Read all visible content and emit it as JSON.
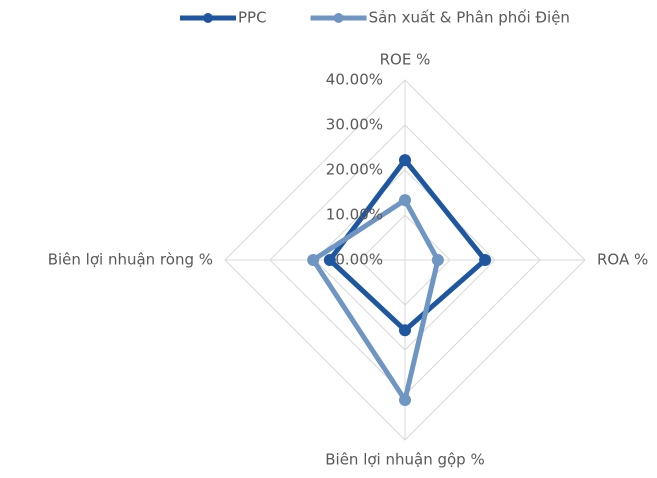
{
  "chart_data": {
    "type": "radar",
    "categories": [
      "ROE %",
      "ROA %",
      "Biên lợi nhuận gộp %",
      "Biên lợi nhuận ròng %"
    ],
    "series": [
      {
        "name": "PPC",
        "color": "#1f56a0",
        "values": [
          22.2,
          17.8,
          15.6,
          16.7
        ]
      },
      {
        "name": "Sản xuất & Phân phối Điện",
        "color": "#6f95c3",
        "values": [
          13.3,
          7.3,
          31.1,
          20.4
        ]
      }
    ],
    "ylim": [
      0,
      40
    ],
    "yticks": [
      {
        "value": 0,
        "label": "0.00%"
      },
      {
        "value": 10,
        "label": "10.00%"
      },
      {
        "value": 20,
        "label": "20.00%"
      },
      {
        "value": 30,
        "label": "30.00%"
      },
      {
        "value": 40,
        "label": "40.00%"
      }
    ],
    "grid": true,
    "legend": "top"
  }
}
